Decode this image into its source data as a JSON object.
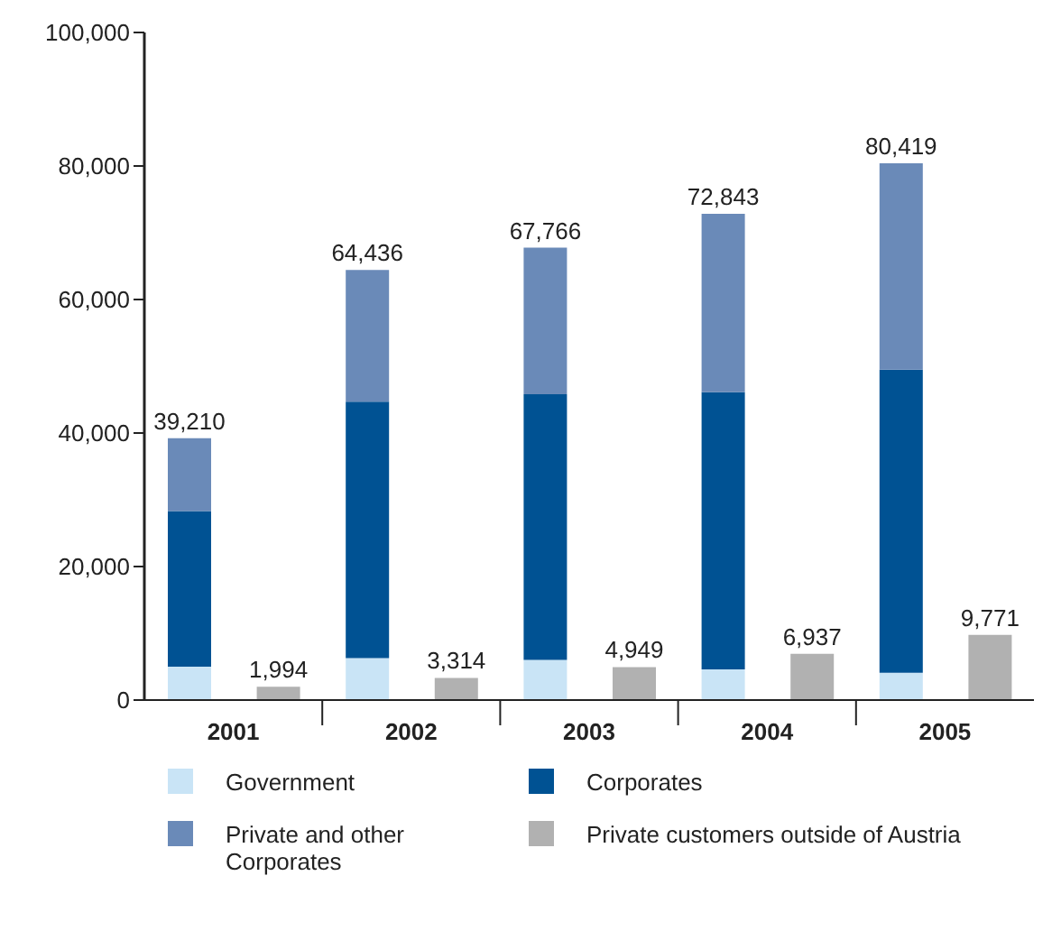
{
  "chart_data": {
    "type": "bar",
    "stacked": true,
    "categories": [
      "2001",
      null,
      "2002",
      null,
      "2003",
      null,
      "2004",
      null,
      "2005",
      null
    ],
    "series": [
      {
        "name": "Government",
        "color": "#c9e4f6",
        "values": [
          5000,
          null,
          6300,
          null,
          6000,
          null,
          4600,
          null,
          4100,
          null
        ]
      },
      {
        "name": "Corporates",
        "color": "#005293",
        "values": [
          23300,
          null,
          38400,
          null,
          39800,
          null,
          41500,
          null,
          45400,
          null
        ]
      },
      {
        "name": "Private and other Corporates",
        "color": "#6a8ab8",
        "values": [
          10910,
          null,
          19736,
          null,
          21966,
          null,
          26743,
          null,
          30919,
          null
        ]
      },
      {
        "name": "Private customers outside of Austria",
        "color": "#b1b1b1",
        "values": [
          null,
          1994,
          null,
          3314,
          null,
          4949,
          null,
          6937,
          null,
          9771
        ],
        "value_labels": [
          null,
          "1,994",
          null,
          "3,314",
          null,
          "4,949",
          null,
          "6,937",
          null,
          "9,771"
        ]
      }
    ],
    "totals": [
      "39,210",
      null,
      "64,436",
      null,
      "67,766",
      null,
      "72,843",
      null,
      "80,419",
      null
    ],
    "ylim": [
      0,
      100000
    ],
    "yticks": [
      0,
      {
        "value": 20000,
        "label": "20,000"
      },
      {
        "value": 40000,
        "label": "40,000"
      },
      {
        "value": 60000,
        "label": "60,000"
      },
      {
        "value": 80000,
        "label": "80,000"
      },
      {
        "value": 100000,
        "label": "100,000"
      }
    ],
    "grid": false,
    "legend": "bottom"
  }
}
